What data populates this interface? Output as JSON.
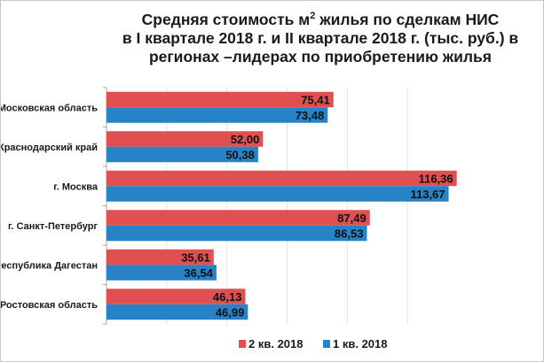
{
  "chart_data": {
    "type": "bar",
    "orientation": "horizontal",
    "title_parts": {
      "pre": "Средняя стоимость м",
      "sup": "2",
      "post": " жилья по сделкам НИС",
      "line2": "в I квартале 2018 г. и  II квартале 2018 г. (тыс. руб.) в",
      "line3": "регионах –лидерах по приобретению жилья"
    },
    "categories": [
      "Московская область",
      "Краснодарский край",
      "г. Москва",
      "г. Санкт-Петербург",
      "Республика Дагестан",
      "Ростовская область"
    ],
    "series": [
      {
        "name": "2 кв. 2018",
        "color": "#e05050",
        "values": [
          75.41,
          52.0,
          116.36,
          87.49,
          35.61,
          46.13
        ],
        "labels": [
          "75,41",
          "52,00",
          "116,36",
          "87,49",
          "35,61",
          "46,13"
        ]
      },
      {
        "name": "1 кв. 2018",
        "color": "#2882c6",
        "values": [
          73.48,
          50.38,
          113.67,
          86.53,
          36.54,
          46.99
        ],
        "labels": [
          "73,48",
          "50,38",
          "113,67",
          "86,53",
          "36,54",
          "46,99"
        ]
      }
    ],
    "xlim": [
      0,
      120
    ],
    "grid_step": 20,
    "grid": true,
    "legend_position": "bottom"
  }
}
